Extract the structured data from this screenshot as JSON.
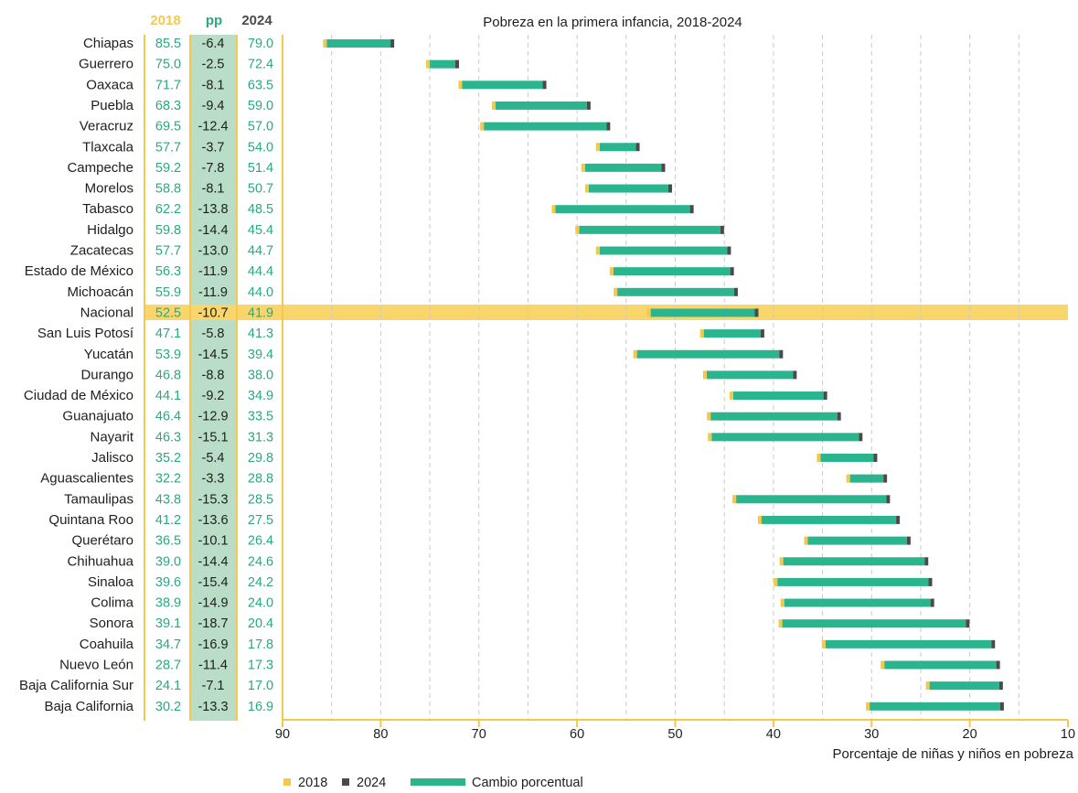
{
  "chart_data": {
    "type": "range-bar",
    "title": "Pobreza en la primera infancia, 2018-2024",
    "xlabel": "Porcentaje de niñas y niños en pobreza",
    "xlim": [
      90,
      10
    ],
    "xticks": [
      "90",
      "80",
      "70",
      "60",
      "50",
      "40",
      "30",
      "20",
      "10"
    ],
    "headers": {
      "y2018": "2018",
      "pp": "pp",
      "y2024": "2024"
    },
    "legend": [
      {
        "label": "2018",
        "color": "#f2c94c"
      },
      {
        "label": "2024",
        "color": "#4a4a4a"
      },
      {
        "label": "Cambio porcentual",
        "color": "#2bb58f"
      }
    ],
    "highlight": "Nacional",
    "rows": [
      {
        "name": "Chiapas",
        "v2018": "85.5",
        "pp": "-6.4",
        "v2024": "79.0"
      },
      {
        "name": "Guerrero",
        "v2018": "75.0",
        "pp": "-2.5",
        "v2024": "72.4"
      },
      {
        "name": "Oaxaca",
        "v2018": "71.7",
        "pp": "-8.1",
        "v2024": "63.5"
      },
      {
        "name": "Puebla",
        "v2018": "68.3",
        "pp": "-9.4",
        "v2024": "59.0"
      },
      {
        "name": "Veracruz",
        "v2018": "69.5",
        "pp": "-12.4",
        "v2024": "57.0"
      },
      {
        "name": "Tlaxcala",
        "v2018": "57.7",
        "pp": "-3.7",
        "v2024": "54.0"
      },
      {
        "name": "Campeche",
        "v2018": "59.2",
        "pp": "-7.8",
        "v2024": "51.4"
      },
      {
        "name": "Morelos",
        "v2018": "58.8",
        "pp": "-8.1",
        "v2024": "50.7"
      },
      {
        "name": "Tabasco",
        "v2018": "62.2",
        "pp": "-13.8",
        "v2024": "48.5"
      },
      {
        "name": "Hidalgo",
        "v2018": "59.8",
        "pp": "-14.4",
        "v2024": "45.4"
      },
      {
        "name": "Zacatecas",
        "v2018": "57.7",
        "pp": "-13.0",
        "v2024": "44.7"
      },
      {
        "name": "Estado de México",
        "v2018": "56.3",
        "pp": "-11.9",
        "v2024": "44.4"
      },
      {
        "name": "Michoacán",
        "v2018": "55.9",
        "pp": "-11.9",
        "v2024": "44.0"
      },
      {
        "name": "Nacional",
        "v2018": "52.5",
        "pp": "-10.7",
        "v2024": "41.9"
      },
      {
        "name": "San Luis Potosí",
        "v2018": "47.1",
        "pp": "-5.8",
        "v2024": "41.3"
      },
      {
        "name": "Yucatán",
        "v2018": "53.9",
        "pp": "-14.5",
        "v2024": "39.4"
      },
      {
        "name": "Durango",
        "v2018": "46.8",
        "pp": "-8.8",
        "v2024": "38.0"
      },
      {
        "name": "Ciudad de México",
        "v2018": "44.1",
        "pp": "-9.2",
        "v2024": "34.9"
      },
      {
        "name": "Guanajuato",
        "v2018": "46.4",
        "pp": "-12.9",
        "v2024": "33.5"
      },
      {
        "name": "Nayarit",
        "v2018": "46.3",
        "pp": "-15.1",
        "v2024": "31.3"
      },
      {
        "name": "Jalisco",
        "v2018": "35.2",
        "pp": "-5.4",
        "v2024": "29.8"
      },
      {
        "name": "Aguascalientes",
        "v2018": "32.2",
        "pp": "-3.3",
        "v2024": "28.8"
      },
      {
        "name": "Tamaulipas",
        "v2018": "43.8",
        "pp": "-15.3",
        "v2024": "28.5"
      },
      {
        "name": "Quintana Roo",
        "v2018": "41.2",
        "pp": "-13.6",
        "v2024": "27.5"
      },
      {
        "name": "Querétaro",
        "v2018": "36.5",
        "pp": "-10.1",
        "v2024": "26.4"
      },
      {
        "name": "Chihuahua",
        "v2018": "39.0",
        "pp": "-14.4",
        "v2024": "24.6"
      },
      {
        "name": "Sinaloa",
        "v2018": "39.6",
        "pp": "-15.4",
        "v2024": "24.2"
      },
      {
        "name": "Colima",
        "v2018": "38.9",
        "pp": "-14.9",
        "v2024": "24.0"
      },
      {
        "name": "Sonora",
        "v2018": "39.1",
        "pp": "-18.7",
        "v2024": "20.4"
      },
      {
        "name": "Coahuila",
        "v2018": "34.7",
        "pp": "-16.9",
        "v2024": "17.8"
      },
      {
        "name": "Nuevo León",
        "v2018": "28.7",
        "pp": "-11.4",
        "v2024": "17.3"
      },
      {
        "name": "Baja California Sur",
        "v2018": "24.1",
        "pp": "-7.1",
        "v2024": "17.0"
      },
      {
        "name": "Baja California",
        "v2018": "30.2",
        "pp": "-13.3",
        "v2024": "16.9"
      }
    ]
  },
  "colors": {
    "yellow": "#f2c94c",
    "highlight": "#f9d66b",
    "teal": "#2bb58f",
    "dark": "#4a4a4a",
    "ppband": "#b9ddc6",
    "number": "#2aa884",
    "grid": "#c9c9c9"
  }
}
